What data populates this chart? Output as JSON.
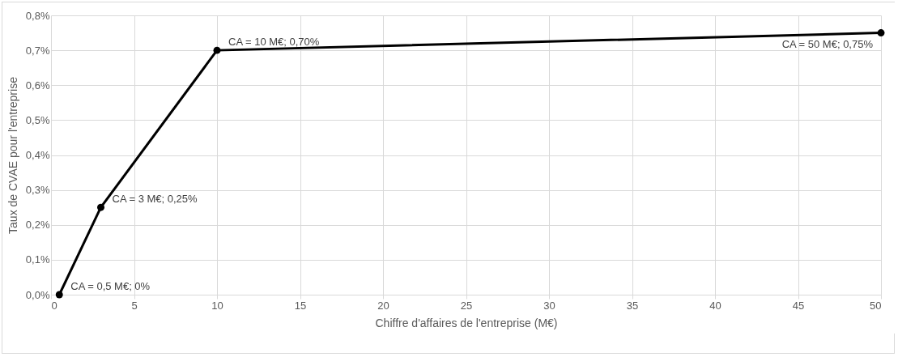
{
  "chart_data": {
    "type": "line",
    "xlabel": "Chiffre d'affaires de l'entreprise (M€)",
    "ylabel": "Taux de CVAE pour l'entreprise",
    "x": [
      0.5,
      3,
      10,
      50
    ],
    "series": [
      {
        "color": "#000000",
        "values": [
          0,
          0.25,
          0.7,
          0.75
        ]
      }
    ],
    "xlim": [
      0,
      50
    ],
    "xticks": [
      0,
      5,
      10,
      15,
      20,
      25,
      30,
      35,
      40,
      45,
      50
    ],
    "ylim": [
      0,
      0.8
    ],
    "yticks": [
      {
        "value": 0,
        "label": "0,0%"
      },
      {
        "value": 0.1,
        "label": "0,1%"
      },
      {
        "value": 0.2,
        "label": "0,2%"
      },
      {
        "value": 0.3,
        "label": "0,3%"
      },
      {
        "value": 0.4,
        "label": "0,4%"
      },
      {
        "value": 0.5,
        "label": "0,5%"
      },
      {
        "value": 0.6,
        "label": "0,6%"
      },
      {
        "value": 0.7,
        "label": "0,7%"
      },
      {
        "value": 0.8,
        "label": "0,8%"
      }
    ],
    "grid": true,
    "marker": "circle",
    "line_style": "solid",
    "annotations": [
      {
        "text": "CA = 0,5 M€; 0%",
        "x": 0.5,
        "y": 0
      },
      {
        "text": "CA = 3 M€; 0,25%",
        "x": 3,
        "y": 0.25
      },
      {
        "text": "CA = 10 M€; 0,70%",
        "x": 10,
        "y": 0.7
      },
      {
        "text": "CA = 50 M€; 0,75%",
        "x": 50,
        "y": 0.75
      }
    ]
  }
}
